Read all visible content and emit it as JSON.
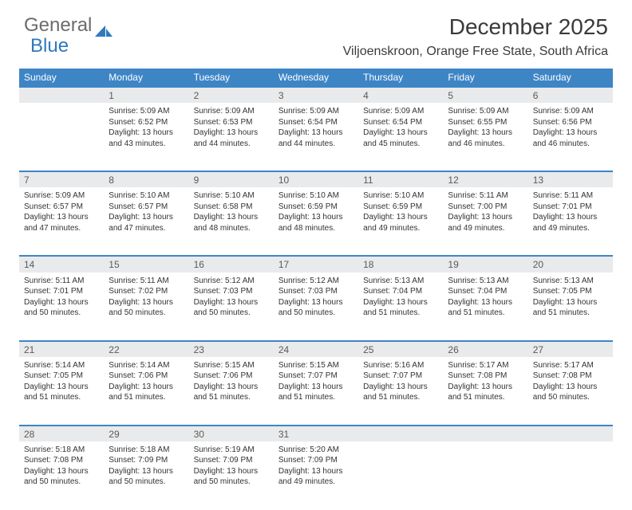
{
  "brand": {
    "part1": "General",
    "part2": "Blue",
    "shape_color": "#2f79bd"
  },
  "title": "December 2025",
  "location": "Viljoenskroon, Orange Free State, South Africa",
  "colors": {
    "header_bg": "#3e85c6",
    "header_text": "#ffffff",
    "daynum_bg": "#e9eaeb",
    "row_border": "#3e85c6",
    "text": "#333333",
    "background": "#ffffff"
  },
  "weekdays": [
    "Sunday",
    "Monday",
    "Tuesday",
    "Wednesday",
    "Thursday",
    "Friday",
    "Saturday"
  ],
  "weeks": [
    [
      null,
      {
        "num": "1",
        "sunrise": "Sunrise: 5:09 AM",
        "sunset": "Sunset: 6:52 PM",
        "day1": "Daylight: 13 hours",
        "day2": "and 43 minutes."
      },
      {
        "num": "2",
        "sunrise": "Sunrise: 5:09 AM",
        "sunset": "Sunset: 6:53 PM",
        "day1": "Daylight: 13 hours",
        "day2": "and 44 minutes."
      },
      {
        "num": "3",
        "sunrise": "Sunrise: 5:09 AM",
        "sunset": "Sunset: 6:54 PM",
        "day1": "Daylight: 13 hours",
        "day2": "and 44 minutes."
      },
      {
        "num": "4",
        "sunrise": "Sunrise: 5:09 AM",
        "sunset": "Sunset: 6:54 PM",
        "day1": "Daylight: 13 hours",
        "day2": "and 45 minutes."
      },
      {
        "num": "5",
        "sunrise": "Sunrise: 5:09 AM",
        "sunset": "Sunset: 6:55 PM",
        "day1": "Daylight: 13 hours",
        "day2": "and 46 minutes."
      },
      {
        "num": "6",
        "sunrise": "Sunrise: 5:09 AM",
        "sunset": "Sunset: 6:56 PM",
        "day1": "Daylight: 13 hours",
        "day2": "and 46 minutes."
      }
    ],
    [
      {
        "num": "7",
        "sunrise": "Sunrise: 5:09 AM",
        "sunset": "Sunset: 6:57 PM",
        "day1": "Daylight: 13 hours",
        "day2": "and 47 minutes."
      },
      {
        "num": "8",
        "sunrise": "Sunrise: 5:10 AM",
        "sunset": "Sunset: 6:57 PM",
        "day1": "Daylight: 13 hours",
        "day2": "and 47 minutes."
      },
      {
        "num": "9",
        "sunrise": "Sunrise: 5:10 AM",
        "sunset": "Sunset: 6:58 PM",
        "day1": "Daylight: 13 hours",
        "day2": "and 48 minutes."
      },
      {
        "num": "10",
        "sunrise": "Sunrise: 5:10 AM",
        "sunset": "Sunset: 6:59 PM",
        "day1": "Daylight: 13 hours",
        "day2": "and 48 minutes."
      },
      {
        "num": "11",
        "sunrise": "Sunrise: 5:10 AM",
        "sunset": "Sunset: 6:59 PM",
        "day1": "Daylight: 13 hours",
        "day2": "and 49 minutes."
      },
      {
        "num": "12",
        "sunrise": "Sunrise: 5:11 AM",
        "sunset": "Sunset: 7:00 PM",
        "day1": "Daylight: 13 hours",
        "day2": "and 49 minutes."
      },
      {
        "num": "13",
        "sunrise": "Sunrise: 5:11 AM",
        "sunset": "Sunset: 7:01 PM",
        "day1": "Daylight: 13 hours",
        "day2": "and 49 minutes."
      }
    ],
    [
      {
        "num": "14",
        "sunrise": "Sunrise: 5:11 AM",
        "sunset": "Sunset: 7:01 PM",
        "day1": "Daylight: 13 hours",
        "day2": "and 50 minutes."
      },
      {
        "num": "15",
        "sunrise": "Sunrise: 5:11 AM",
        "sunset": "Sunset: 7:02 PM",
        "day1": "Daylight: 13 hours",
        "day2": "and 50 minutes."
      },
      {
        "num": "16",
        "sunrise": "Sunrise: 5:12 AM",
        "sunset": "Sunset: 7:03 PM",
        "day1": "Daylight: 13 hours",
        "day2": "and 50 minutes."
      },
      {
        "num": "17",
        "sunrise": "Sunrise: 5:12 AM",
        "sunset": "Sunset: 7:03 PM",
        "day1": "Daylight: 13 hours",
        "day2": "and 50 minutes."
      },
      {
        "num": "18",
        "sunrise": "Sunrise: 5:13 AM",
        "sunset": "Sunset: 7:04 PM",
        "day1": "Daylight: 13 hours",
        "day2": "and 51 minutes."
      },
      {
        "num": "19",
        "sunrise": "Sunrise: 5:13 AM",
        "sunset": "Sunset: 7:04 PM",
        "day1": "Daylight: 13 hours",
        "day2": "and 51 minutes."
      },
      {
        "num": "20",
        "sunrise": "Sunrise: 5:13 AM",
        "sunset": "Sunset: 7:05 PM",
        "day1": "Daylight: 13 hours",
        "day2": "and 51 minutes."
      }
    ],
    [
      {
        "num": "21",
        "sunrise": "Sunrise: 5:14 AM",
        "sunset": "Sunset: 7:05 PM",
        "day1": "Daylight: 13 hours",
        "day2": "and 51 minutes."
      },
      {
        "num": "22",
        "sunrise": "Sunrise: 5:14 AM",
        "sunset": "Sunset: 7:06 PM",
        "day1": "Daylight: 13 hours",
        "day2": "and 51 minutes."
      },
      {
        "num": "23",
        "sunrise": "Sunrise: 5:15 AM",
        "sunset": "Sunset: 7:06 PM",
        "day1": "Daylight: 13 hours",
        "day2": "and 51 minutes."
      },
      {
        "num": "24",
        "sunrise": "Sunrise: 5:15 AM",
        "sunset": "Sunset: 7:07 PM",
        "day1": "Daylight: 13 hours",
        "day2": "and 51 minutes."
      },
      {
        "num": "25",
        "sunrise": "Sunrise: 5:16 AM",
        "sunset": "Sunset: 7:07 PM",
        "day1": "Daylight: 13 hours",
        "day2": "and 51 minutes."
      },
      {
        "num": "26",
        "sunrise": "Sunrise: 5:17 AM",
        "sunset": "Sunset: 7:08 PM",
        "day1": "Daylight: 13 hours",
        "day2": "and 51 minutes."
      },
      {
        "num": "27",
        "sunrise": "Sunrise: 5:17 AM",
        "sunset": "Sunset: 7:08 PM",
        "day1": "Daylight: 13 hours",
        "day2": "and 50 minutes."
      }
    ],
    [
      {
        "num": "28",
        "sunrise": "Sunrise: 5:18 AM",
        "sunset": "Sunset: 7:08 PM",
        "day1": "Daylight: 13 hours",
        "day2": "and 50 minutes."
      },
      {
        "num": "29",
        "sunrise": "Sunrise: 5:18 AM",
        "sunset": "Sunset: 7:09 PM",
        "day1": "Daylight: 13 hours",
        "day2": "and 50 minutes."
      },
      {
        "num": "30",
        "sunrise": "Sunrise: 5:19 AM",
        "sunset": "Sunset: 7:09 PM",
        "day1": "Daylight: 13 hours",
        "day2": "and 50 minutes."
      },
      {
        "num": "31",
        "sunrise": "Sunrise: 5:20 AM",
        "sunset": "Sunset: 7:09 PM",
        "day1": "Daylight: 13 hours",
        "day2": "and 49 minutes."
      },
      null,
      null,
      null
    ]
  ]
}
